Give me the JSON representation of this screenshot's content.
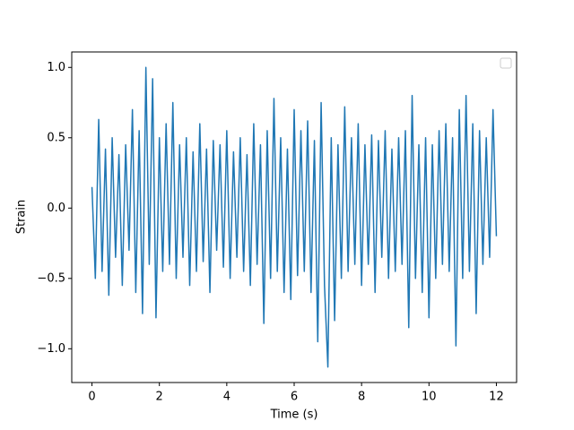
{
  "chart_data": {
    "type": "line",
    "x_label": "Time (s)",
    "y_label": "Strain",
    "color": "#1f77b4",
    "legend": "upper right",
    "x": [
      0,
      0.1,
      0.2,
      0.3,
      0.4,
      0.5,
      0.6,
      0.7,
      0.8,
      0.9,
      1,
      1.1,
      1.2,
      1.3,
      1.4,
      1.5,
      1.6,
      1.7,
      1.8,
      1.9,
      2,
      2.1,
      2.2,
      2.3,
      2.4,
      2.5,
      2.6,
      2.7,
      2.8,
      2.9,
      3,
      3.1,
      3.2,
      3.3,
      3.4,
      3.5,
      3.6,
      3.7,
      3.8,
      3.9,
      4,
      4.1,
      4.2,
      4.3,
      4.4,
      4.5,
      4.6,
      4.7,
      4.8,
      4.9,
      5,
      5.1,
      5.2,
      5.3,
      5.4,
      5.5,
      5.6,
      5.7,
      5.8,
      5.9,
      6,
      6.1,
      6.2,
      6.3,
      6.4,
      6.5,
      6.6,
      6.7,
      6.8,
      6.9,
      7,
      7.1,
      7.2,
      7.3,
      7.4,
      7.5,
      7.6,
      7.7,
      7.8,
      7.9,
      8,
      8.1,
      8.2,
      8.3,
      8.4,
      8.5,
      8.6,
      8.7,
      8.8,
      8.9,
      9,
      9.1,
      9.2,
      9.3,
      9.4,
      9.5,
      9.6,
      9.7,
      9.8,
      9.9,
      10,
      10.1,
      10.2,
      10.3,
      10.4,
      10.5,
      10.6,
      10.7,
      10.8,
      10.9,
      11,
      11.1,
      11.2,
      11.3,
      11.4,
      11.5,
      11.6,
      11.7,
      11.8,
      11.9,
      12
    ],
    "values": [
      0.15,
      -0.5,
      0.63,
      -0.45,
      0.42,
      -0.62,
      0.5,
      -0.35,
      0.38,
      -0.55,
      0.45,
      -0.3,
      0.7,
      -0.6,
      0.55,
      -0.75,
      1.0,
      -0.4,
      0.92,
      -0.78,
      0.5,
      -0.45,
      0.6,
      -0.4,
      0.75,
      -0.5,
      0.45,
      -0.35,
      0.5,
      -0.55,
      0.4,
      -0.45,
      0.6,
      -0.38,
      0.42,
      -0.6,
      0.48,
      -0.3,
      0.45,
      -0.42,
      0.55,
      -0.5,
      0.4,
      -0.35,
      0.5,
      -0.45,
      0.38,
      -0.55,
      0.6,
      -0.4,
      0.45,
      -0.82,
      0.55,
      -0.5,
      0.78,
      -0.45,
      0.5,
      -0.6,
      0.42,
      -0.65,
      0.7,
      -0.48,
      0.55,
      -0.45,
      0.62,
      -0.6,
      0.48,
      -0.95,
      0.75,
      -0.55,
      -1.13,
      0.5,
      -0.8,
      0.45,
      -0.5,
      0.72,
      -0.45,
      0.5,
      -0.4,
      0.6,
      -0.55,
      0.45,
      -0.4,
      0.52,
      -0.6,
      0.48,
      -0.35,
      0.55,
      -0.5,
      0.42,
      -0.45,
      0.5,
      -0.4,
      0.55,
      -0.85,
      0.8,
      -0.5,
      0.45,
      -0.6,
      0.5,
      -0.78,
      0.45,
      -0.5,
      0.55,
      -0.4,
      0.6,
      -0.45,
      0.5,
      -0.98,
      0.7,
      -0.5,
      0.8,
      -0.45,
      0.6,
      -0.75,
      0.55,
      -0.4,
      0.5,
      -0.35,
      0.7,
      -0.2
    ],
    "xlim": [
      -0.6,
      12.6
    ],
    "xticks": [
      0,
      2,
      4,
      6,
      8,
      10,
      12
    ],
    "ylim": [
      -1.24,
      1.11
    ],
    "yticks": [
      {
        "value": -1.0,
        "label": "−1.0"
      },
      {
        "value": -0.5,
        "label": "−0.5"
      },
      {
        "value": 0,
        "label": "0.0"
      },
      {
        "value": 0.5,
        "label": "0.5"
      },
      {
        "value": 1.0,
        "label": "1.0"
      }
    ]
  }
}
